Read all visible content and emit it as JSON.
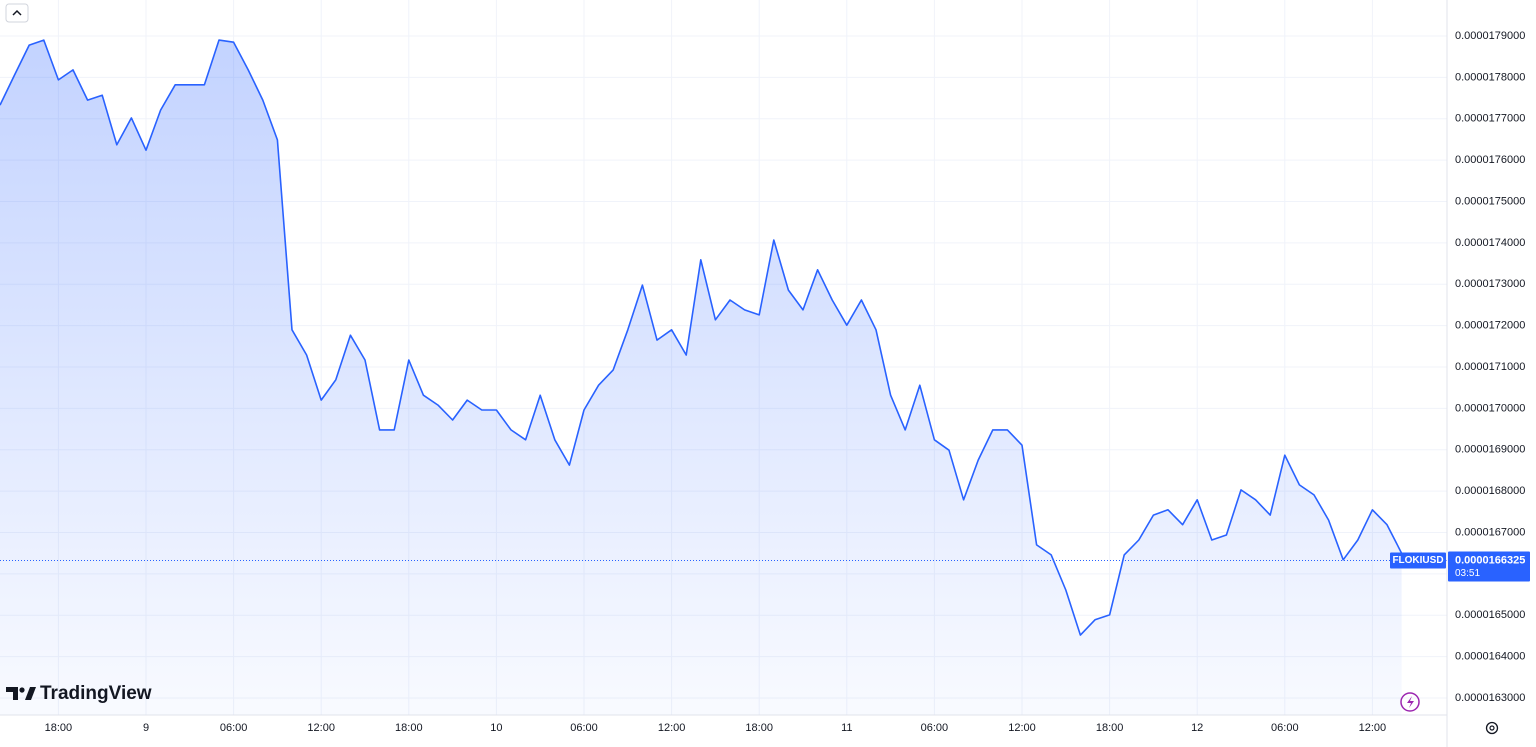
{
  "chart_data": {
    "type": "area",
    "symbol": "FLOKIUSD",
    "last_price": 1.66325e-05,
    "countdown": "03:51",
    "brand": "TradingView",
    "color": "#2962ff",
    "grid": true,
    "ylim": [
      1.6259e-05,
      1.7987e-05
    ],
    "yticks": [
      {
        "value": 1.63e-05,
        "label": "0.0000163000"
      },
      {
        "value": 1.64e-05,
        "label": "0.0000164000"
      },
      {
        "value": 1.65e-05,
        "label": "0.0000165000"
      },
      {
        "value": 1.66e-05,
        "label": "0.0000166000"
      },
      {
        "value": 1.67e-05,
        "label": "0.0000167000"
      },
      {
        "value": 1.68e-05,
        "label": "0.0000168000"
      },
      {
        "value": 1.69e-05,
        "label": "0.0000169000"
      },
      {
        "value": 1.7e-05,
        "label": "0.0000170000"
      },
      {
        "value": 1.71e-05,
        "label": "0.0000171000"
      },
      {
        "value": 1.72e-05,
        "label": "0.0000172000"
      },
      {
        "value": 1.73e-05,
        "label": "0.0000173000"
      },
      {
        "value": 1.74e-05,
        "label": "0.0000174000"
      },
      {
        "value": 1.75e-05,
        "label": "0.0000175000"
      },
      {
        "value": 1.76e-05,
        "label": "0.0000176000"
      },
      {
        "value": 1.77e-05,
        "label": "0.0000177000"
      },
      {
        "value": 1.78e-05,
        "label": "0.0000178000"
      },
      {
        "value": 1.79e-05,
        "label": "0.0000179000"
      }
    ],
    "categories": [
      null,
      null,
      null,
      null,
      "18:00",
      null,
      null,
      null,
      null,
      null,
      "9",
      null,
      null,
      null,
      null,
      null,
      "06:00",
      null,
      null,
      null,
      null,
      null,
      "12:00",
      null,
      null,
      null,
      null,
      null,
      "18:00",
      null,
      null,
      null,
      null,
      null,
      "10",
      null,
      null,
      null,
      null,
      null,
      "06:00",
      null,
      null,
      null,
      null,
      null,
      "12:00",
      null,
      null,
      null,
      null,
      null,
      "18:00",
      null,
      null,
      null,
      null,
      null,
      "11",
      null,
      null,
      null,
      null,
      null,
      "06:00",
      null,
      null,
      null,
      null,
      null,
      "12:00",
      null,
      null,
      null,
      null,
      null,
      "18:00",
      null,
      null,
      null,
      null,
      null,
      "12",
      null,
      null,
      null,
      null,
      null,
      "06:00",
      null,
      null,
      null,
      null,
      null,
      "12:00",
      null,
      null
    ],
    "values": [
      1.7733e-05,
      1.7806e-05,
      1.7878e-05,
      1.789e-05,
      1.7794e-05,
      1.7818e-05,
      1.7745e-05,
      1.7757e-05,
      1.7637e-05,
      1.7702e-05,
      1.7624e-05,
      1.7721e-05,
      1.7782e-05,
      1.7782e-05,
      1.7782e-05,
      1.789e-05,
      1.7885e-05,
      1.7818e-05,
      1.7745e-05,
      1.7649e-05,
      1.719e-05,
      1.7129e-05,
      1.702e-05,
      1.7069e-05,
      1.7177e-05,
      1.7117e-05,
      1.6948e-05,
      1.6948e-05,
      1.7117e-05,
      1.7032e-05,
      1.7008e-05,
      1.6972e-05,
      1.702e-05,
      1.6996e-05,
      1.6996e-05,
      1.6948e-05,
      1.6924e-05,
      1.7032e-05,
      1.6924e-05,
      1.6863e-05,
      1.6996e-05,
      1.7056e-05,
      1.7093e-05,
      1.719e-05,
      1.7298e-05,
      1.7165e-05,
      1.719e-05,
      1.7129e-05,
      1.7359e-05,
      1.7214e-05,
      1.7262e-05,
      1.7238e-05,
      1.7226e-05,
      1.7407e-05,
      1.7286e-05,
      1.7238e-05,
      1.7335e-05,
      1.7262e-05,
      1.7201e-05,
      1.7262e-05,
      1.719e-05,
      1.7032e-05,
      1.6948e-05,
      1.7056e-05,
      1.6924e-05,
      1.6899e-05,
      1.6779e-05,
      1.6875e-05,
      1.6948e-05,
      1.6948e-05,
      1.6911e-05,
      1.667e-05,
      1.6646e-05,
      1.6561e-05,
      1.6452e-05,
      1.6489e-05,
      1.6501e-05,
      1.6646e-05,
      1.6682e-05,
      1.6742e-05,
      1.6755e-05,
      1.6719e-05,
      1.6779e-05,
      1.6682e-05,
      1.6694e-05,
      1.6803e-05,
      1.6779e-05,
      1.6742e-05,
      1.6887e-05,
      1.6815e-05,
      1.6791e-05,
      1.673e-05,
      1.6634e-05,
      1.6682e-05,
      1.6755e-05,
      1.6719e-05,
      1.665e-05
    ]
  }
}
